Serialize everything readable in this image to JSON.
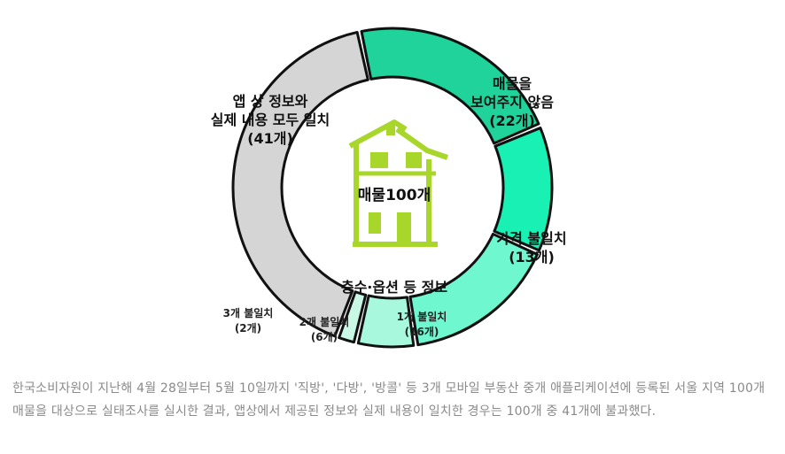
{
  "chart_data": {
    "type": "pie",
    "style": "donut",
    "center_label": "매물100개",
    "group_label": "층수·옵션 등 정보",
    "segments": [
      {
        "label_lines": [
          "매물을",
          "보여주지 않음",
          "(22개)"
        ],
        "value": 22,
        "color": "#1fd39a"
      },
      {
        "label_lines": [
          "가격 불일치",
          "(13개)"
        ],
        "value": 13,
        "color": "#19f0b4"
      },
      {
        "label_lines": [
          "1개 불일치",
          "(16개)"
        ],
        "value": 16,
        "color": "#6ff7cf",
        "group": true
      },
      {
        "label_lines": [
          "2개 불일치",
          "(6개)"
        ],
        "value": 6,
        "color": "#a8f8dd",
        "group": true
      },
      {
        "label_lines": [
          "3개 불일치",
          "(2개)"
        ],
        "value": 2,
        "color": "#c9f8e6",
        "group": true
      },
      {
        "label_lines": [
          "앱 상 정보와",
          "실제 내용 모두 일치",
          "(41개)"
        ],
        "value": 41,
        "color": "#d5d5d5"
      }
    ],
    "house_icon": "house-icon"
  },
  "caption": "한국소비자원이 지난해 4월 28일부터 5월 10일까지 '직방', '다방', '방콜' 등 3개 모바일 부동산 중개 애플리케이션에 등록된 서울 지역 100개 매물을 대상으로 실태조사를 실시한 결과, 앱상에서 제공된 정보와 실제 내용이 일치한 경우는 100개 중 41개에 불과했다."
}
